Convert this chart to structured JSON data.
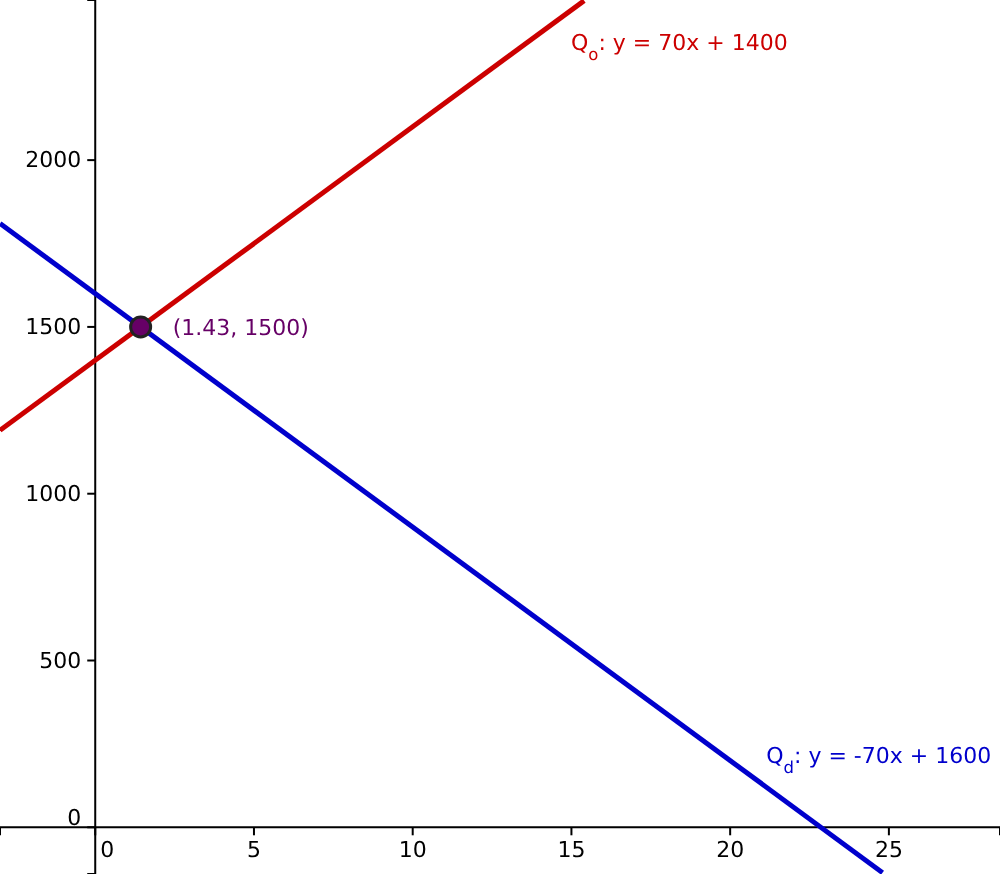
{
  "chart_data": {
    "type": "line",
    "xlim": [
      -3,
      28.5
    ],
    "ylim": [
      -140,
      2480
    ],
    "xticks": [
      0,
      5,
      10,
      15,
      20,
      25
    ],
    "yticks": [
      0,
      500,
      1000,
      1500,
      2000
    ],
    "grid": false,
    "series": [
      {
        "name": "Q$_{o}$: y = 70x + 1400",
        "color": "#cc0000",
        "x": [
          -3,
          15.4
        ],
        "values": [
          1190,
          2478
        ]
      },
      {
        "name": "Q$_{d}$: y = -70x + 1600",
        "color": "#0000cc",
        "x": [
          -3,
          24.8
        ],
        "values": [
          1810,
          -136
        ]
      },
      {
        "type": "scatter",
        "color": "#660066",
        "x": [
          1.43
        ],
        "values": [
          1500
        ],
        "marker": "circle"
      }
    ],
    "annotations": [
      {
        "text": "(1.43, 1500)",
        "x": 1.43,
        "y": 1500
      }
    ]
  }
}
